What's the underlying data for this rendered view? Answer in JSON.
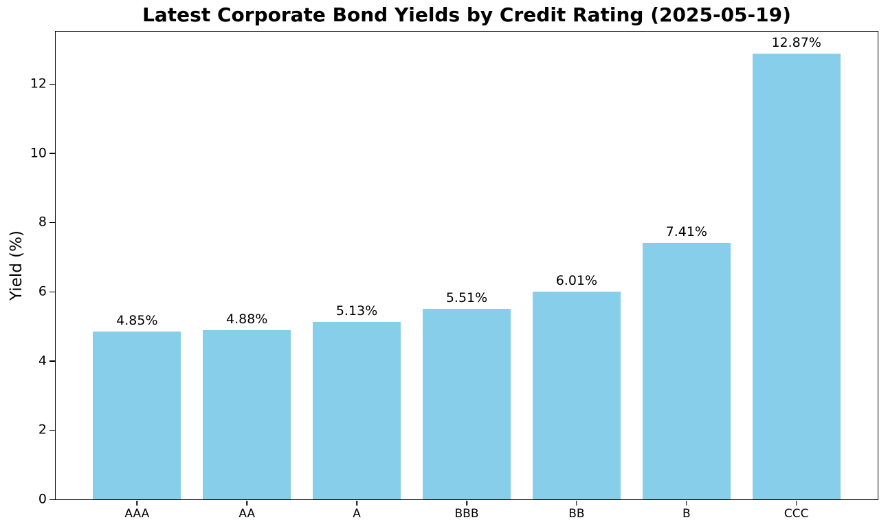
{
  "chart_data": {
    "type": "bar",
    "title": "Latest Corporate Bond Yields by Credit Rating (2025-05-19)",
    "xlabel": "",
    "ylabel": "Yield (%)",
    "categories": [
      "AAA",
      "AA",
      "A",
      "BBB",
      "BB",
      "B",
      "CCC"
    ],
    "values": [
      4.85,
      4.88,
      5.13,
      5.51,
      6.01,
      7.41,
      12.87
    ],
    "value_labels": [
      "4.85%",
      "4.88%",
      "5.13%",
      "5.51%",
      "6.01%",
      "7.41%",
      "12.87%"
    ],
    "yticks": [
      0,
      2,
      4,
      6,
      8,
      10,
      12
    ],
    "ylim": [
      0,
      13.51
    ],
    "bar_color": "#87CEEB",
    "grid": false,
    "legend": "none",
    "background_color": "#ffffff",
    "axis_color": "#000000"
  }
}
